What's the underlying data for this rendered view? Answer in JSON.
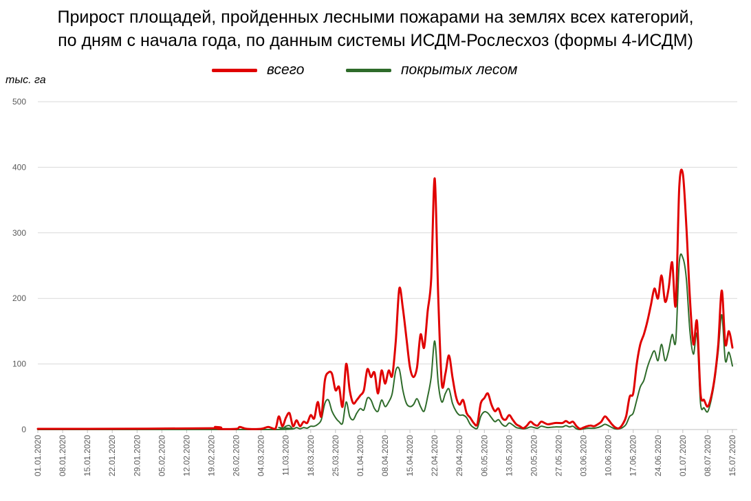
{
  "title_lines": [
    "Прирост площадей, пройденных лесными пожарами на землях всех категорий,",
    "по дням с начала года, по данным системы ИСДМ-Рослесхоз (формы 4-ИСДМ)"
  ],
  "unit_label": "тыс. га",
  "legend": [
    {
      "label": "всего",
      "color": "#e00000"
    },
    {
      "label": "покрытых лесом",
      "color": "#2e6b2a"
    }
  ],
  "chart_data": {
    "type": "line",
    "title": "Прирост площадей, пройденных лесными пожарами на землях всех категорий, по дням с начала года, по данным системы ИСДМ-Рослесхоз (формы 4-ИСДМ)",
    "ylabel": "тыс. га",
    "ylim": [
      0,
      500
    ],
    "yticks": [
      0,
      100,
      200,
      300,
      400,
      500
    ],
    "grid": true,
    "legend_position": "top",
    "x_tick_labels": [
      "01.01.2020",
      "08.01.2020",
      "15.01.2020",
      "22.01.2020",
      "29.01.2020",
      "05.02.2020",
      "12.02.2020",
      "19.02.2020",
      "26.02.2020",
      "04.03.2020",
      "11.03.2020",
      "18.03.2020",
      "25.03.2020",
      "01.04.2020",
      "08.04.2020",
      "15.04.2020",
      "22.04.2020",
      "29.04.2020",
      "06.05.2020",
      "13.05.2020",
      "20.05.2020",
      "27.05.2020",
      "03.06.2020",
      "10.06.2020",
      "17.06.2020",
      "24.06.2020",
      "01.07.2020",
      "08.07.2020",
      "15.07.2020"
    ],
    "x_range": [
      "01.01.2020",
      "16.07.2020"
    ],
    "series": [
      {
        "name": "всего",
        "color": "#e00000",
        "points": [
          [
            "01.01.2020",
            1
          ],
          [
            "15.01.2020",
            1
          ],
          [
            "19.02.2020",
            2
          ],
          [
            "20.02.2020",
            4
          ],
          [
            "21.02.2020",
            1
          ],
          [
            "26.02.2020",
            1
          ],
          [
            "27.02.2020",
            4
          ],
          [
            "29.02.2020",
            1
          ],
          [
            "04.03.2020",
            1
          ],
          [
            "06.03.2020",
            4
          ],
          [
            "08.03.2020",
            1
          ],
          [
            "09.03.2020",
            20
          ],
          [
            "10.03.2020",
            5
          ],
          [
            "11.03.2020",
            18
          ],
          [
            "12.03.2020",
            25
          ],
          [
            "13.03.2020",
            5
          ],
          [
            "14.03.2020",
            14
          ],
          [
            "15.03.2020",
            5
          ],
          [
            "16.03.2020",
            12
          ],
          [
            "17.03.2020",
            10
          ],
          [
            "18.03.2020",
            22
          ],
          [
            "19.03.2020",
            17
          ],
          [
            "20.03.2020",
            42
          ],
          [
            "21.03.2020",
            20
          ],
          [
            "22.03.2020",
            75
          ],
          [
            "23.03.2020",
            87
          ],
          [
            "24.03.2020",
            85
          ],
          [
            "25.03.2020",
            60
          ],
          [
            "26.03.2020",
            65
          ],
          [
            "27.03.2020",
            35
          ],
          [
            "28.03.2020",
            100
          ],
          [
            "29.03.2020",
            60
          ],
          [
            "30.03.2020",
            40
          ],
          [
            "31.03.2020",
            45
          ],
          [
            "01.04.2020",
            52
          ],
          [
            "02.04.2020",
            60
          ],
          [
            "03.04.2020",
            92
          ],
          [
            "04.04.2020",
            80
          ],
          [
            "05.04.2020",
            87
          ],
          [
            "06.04.2020",
            55
          ],
          [
            "07.04.2020",
            90
          ],
          [
            "08.04.2020",
            70
          ],
          [
            "09.04.2020",
            90
          ],
          [
            "10.04.2020",
            82
          ],
          [
            "11.04.2020",
            135
          ],
          [
            "12.04.2020",
            215
          ],
          [
            "13.04.2020",
            185
          ],
          [
            "14.04.2020",
            140
          ],
          [
            "15.04.2020",
            95
          ],
          [
            "16.04.2020",
            80
          ],
          [
            "17.04.2020",
            95
          ],
          [
            "18.04.2020",
            145
          ],
          [
            "19.04.2020",
            125
          ],
          [
            "20.04.2020",
            180
          ],
          [
            "21.04.2020",
            230
          ],
          [
            "22.04.2020",
            383
          ],
          [
            "23.04.2020",
            200
          ],
          [
            "24.04.2020",
            70
          ],
          [
            "25.04.2020",
            85
          ],
          [
            "26.04.2020",
            113
          ],
          [
            "27.04.2020",
            80
          ],
          [
            "28.04.2020",
            50
          ],
          [
            "29.04.2020",
            38
          ],
          [
            "30.04.2020",
            45
          ],
          [
            "01.05.2020",
            25
          ],
          [
            "02.05.2020",
            18
          ],
          [
            "03.05.2020",
            10
          ],
          [
            "04.05.2020",
            8
          ],
          [
            "05.05.2020",
            40
          ],
          [
            "06.05.2020",
            48
          ],
          [
            "07.05.2020",
            55
          ],
          [
            "08.05.2020",
            38
          ],
          [
            "09.05.2020",
            28
          ],
          [
            "10.05.2020",
            32
          ],
          [
            "11.05.2020",
            18
          ],
          [
            "12.05.2020",
            15
          ],
          [
            "13.05.2020",
            22
          ],
          [
            "14.05.2020",
            15
          ],
          [
            "15.05.2020",
            8
          ],
          [
            "16.05.2020",
            5
          ],
          [
            "17.05.2020",
            2
          ],
          [
            "18.05.2020",
            6
          ],
          [
            "19.05.2020",
            12
          ],
          [
            "20.05.2020",
            8
          ],
          [
            "21.05.2020",
            6
          ],
          [
            "22.05.2020",
            12
          ],
          [
            "23.05.2020",
            10
          ],
          [
            "24.05.2020",
            8
          ],
          [
            "26.05.2020",
            10
          ],
          [
            "28.05.2020",
            10
          ],
          [
            "29.05.2020",
            13
          ],
          [
            "30.05.2020",
            10
          ],
          [
            "31.05.2020",
            12
          ],
          [
            "01.06.2020",
            5
          ],
          [
            "02.06.2020",
            1
          ],
          [
            "03.06.2020",
            3
          ],
          [
            "04.06.2020",
            5
          ],
          [
            "05.06.2020",
            6
          ],
          [
            "06.06.2020",
            5
          ],
          [
            "07.06.2020",
            8
          ],
          [
            "08.06.2020",
            12
          ],
          [
            "09.06.2020",
            20
          ],
          [
            "10.06.2020",
            15
          ],
          [
            "11.06.2020",
            8
          ],
          [
            "12.06.2020",
            3
          ],
          [
            "13.06.2020",
            2
          ],
          [
            "14.06.2020",
            8
          ],
          [
            "15.06.2020",
            20
          ],
          [
            "16.06.2020",
            50
          ],
          [
            "17.06.2020",
            55
          ],
          [
            "18.06.2020",
            100
          ],
          [
            "19.06.2020",
            130
          ],
          [
            "20.06.2020",
            145
          ],
          [
            "21.06.2020",
            165
          ],
          [
            "22.06.2020",
            190
          ],
          [
            "23.06.2020",
            215
          ],
          [
            "24.06.2020",
            200
          ],
          [
            "25.06.2020",
            235
          ],
          [
            "26.06.2020",
            195
          ],
          [
            "27.06.2020",
            215
          ],
          [
            "28.06.2020",
            255
          ],
          [
            "29.06.2020",
            190
          ],
          [
            "30.06.2020",
            370
          ],
          [
            "01.07.2020",
            390
          ],
          [
            "02.07.2020",
            310
          ],
          [
            "03.07.2020",
            200
          ],
          [
            "04.07.2020",
            130
          ],
          [
            "05.07.2020",
            165
          ],
          [
            "06.07.2020",
            55
          ],
          [
            "07.07.2020",
            45
          ],
          [
            "08.07.2020",
            35
          ],
          [
            "09.07.2020",
            50
          ],
          [
            "10.07.2020",
            80
          ],
          [
            "11.07.2020",
            130
          ],
          [
            "12.07.2020",
            212
          ],
          [
            "13.07.2020",
            130
          ],
          [
            "14.07.2020",
            150
          ],
          [
            "15.07.2020",
            125
          ]
        ]
      },
      {
        "name": "покрытых лесом",
        "color": "#2e6b2a",
        "points": [
          [
            "01.01.2020",
            0
          ],
          [
            "08.03.2020",
            0
          ],
          [
            "09.03.2020",
            3
          ],
          [
            "10.03.2020",
            1
          ],
          [
            "11.03.2020",
            5
          ],
          [
            "12.03.2020",
            6
          ],
          [
            "13.03.2020",
            1
          ],
          [
            "14.03.2020",
            3
          ],
          [
            "15.03.2020",
            1
          ],
          [
            "16.03.2020",
            3
          ],
          [
            "17.03.2020",
            2
          ],
          [
            "18.03.2020",
            5
          ],
          [
            "19.03.2020",
            5
          ],
          [
            "20.03.2020",
            8
          ],
          [
            "21.03.2020",
            15
          ],
          [
            "22.03.2020",
            40
          ],
          [
            "23.03.2020",
            45
          ],
          [
            "24.03.2020",
            28
          ],
          [
            "25.03.2020",
            18
          ],
          [
            "26.03.2020",
            12
          ],
          [
            "27.03.2020",
            10
          ],
          [
            "28.03.2020",
            42
          ],
          [
            "29.03.2020",
            20
          ],
          [
            "30.03.2020",
            15
          ],
          [
            "31.03.2020",
            25
          ],
          [
            "01.04.2020",
            32
          ],
          [
            "02.04.2020",
            30
          ],
          [
            "03.04.2020",
            48
          ],
          [
            "04.04.2020",
            45
          ],
          [
            "05.04.2020",
            32
          ],
          [
            "06.04.2020",
            28
          ],
          [
            "07.04.2020",
            45
          ],
          [
            "08.04.2020",
            35
          ],
          [
            "09.04.2020",
            42
          ],
          [
            "10.04.2020",
            55
          ],
          [
            "11.04.2020",
            90
          ],
          [
            "12.04.2020",
            92
          ],
          [
            "13.04.2020",
            60
          ],
          [
            "14.04.2020",
            40
          ],
          [
            "15.04.2020",
            35
          ],
          [
            "16.04.2020",
            38
          ],
          [
            "17.04.2020",
            47
          ],
          [
            "18.04.2020",
            35
          ],
          [
            "19.04.2020",
            28
          ],
          [
            "20.04.2020",
            50
          ],
          [
            "21.04.2020",
            80
          ],
          [
            "22.04.2020",
            135
          ],
          [
            "23.04.2020",
            70
          ],
          [
            "24.04.2020",
            42
          ],
          [
            "25.04.2020",
            55
          ],
          [
            "26.04.2020",
            62
          ],
          [
            "27.04.2020",
            40
          ],
          [
            "28.04.2020",
            28
          ],
          [
            "29.04.2020",
            22
          ],
          [
            "30.04.2020",
            22
          ],
          [
            "01.05.2020",
            18
          ],
          [
            "02.05.2020",
            8
          ],
          [
            "03.05.2020",
            3
          ],
          [
            "04.05.2020",
            2
          ],
          [
            "05.05.2020",
            20
          ],
          [
            "06.05.2020",
            27
          ],
          [
            "07.05.2020",
            25
          ],
          [
            "08.05.2020",
            18
          ],
          [
            "09.05.2020",
            12
          ],
          [
            "10.05.2020",
            15
          ],
          [
            "11.05.2020",
            8
          ],
          [
            "12.05.2020",
            5
          ],
          [
            "13.05.2020",
            10
          ],
          [
            "14.05.2020",
            7
          ],
          [
            "15.05.2020",
            3
          ],
          [
            "16.05.2020",
            2
          ],
          [
            "17.05.2020",
            1
          ],
          [
            "18.05.2020",
            2
          ],
          [
            "19.05.2020",
            4
          ],
          [
            "20.05.2020",
            3
          ],
          [
            "21.05.2020",
            2
          ],
          [
            "22.05.2020",
            5
          ],
          [
            "23.05.2020",
            4
          ],
          [
            "24.05.2020",
            3
          ],
          [
            "26.05.2020",
            4
          ],
          [
            "28.05.2020",
            4
          ],
          [
            "29.05.2020",
            6
          ],
          [
            "30.05.2020",
            4
          ],
          [
            "31.05.2020",
            5
          ],
          [
            "01.06.2020",
            1
          ],
          [
            "02.06.2020",
            0
          ],
          [
            "03.06.2020",
            1
          ],
          [
            "04.06.2020",
            2
          ],
          [
            "05.06.2020",
            2
          ],
          [
            "06.06.2020",
            2
          ],
          [
            "07.06.2020",
            3
          ],
          [
            "08.06.2020",
            5
          ],
          [
            "09.06.2020",
            8
          ],
          [
            "10.06.2020",
            6
          ],
          [
            "11.06.2020",
            3
          ],
          [
            "12.06.2020",
            1
          ],
          [
            "13.06.2020",
            1
          ],
          [
            "14.06.2020",
            3
          ],
          [
            "15.06.2020",
            8
          ],
          [
            "16.06.2020",
            20
          ],
          [
            "17.06.2020",
            25
          ],
          [
            "18.06.2020",
            45
          ],
          [
            "19.06.2020",
            65
          ],
          [
            "20.06.2020",
            75
          ],
          [
            "21.06.2020",
            95
          ],
          [
            "22.06.2020",
            110
          ],
          [
            "23.06.2020",
            120
          ],
          [
            "24.06.2020",
            105
          ],
          [
            "25.06.2020",
            130
          ],
          [
            "26.06.2020",
            105
          ],
          [
            "27.06.2020",
            120
          ],
          [
            "28.06.2020",
            145
          ],
          [
            "29.06.2020",
            135
          ],
          [
            "30.06.2020",
            255
          ],
          [
            "01.07.2020",
            262
          ],
          [
            "02.07.2020",
            230
          ],
          [
            "03.07.2020",
            150
          ],
          [
            "04.07.2020",
            115
          ],
          [
            "05.07.2020",
            145
          ],
          [
            "06.07.2020",
            40
          ],
          [
            "07.07.2020",
            33
          ],
          [
            "08.07.2020",
            27
          ],
          [
            "09.07.2020",
            45
          ],
          [
            "10.07.2020",
            75
          ],
          [
            "11.07.2020",
            120
          ],
          [
            "12.07.2020",
            175
          ],
          [
            "13.07.2020",
            105
          ],
          [
            "14.07.2020",
            118
          ],
          [
            "15.07.2020",
            97
          ]
        ]
      }
    ]
  }
}
